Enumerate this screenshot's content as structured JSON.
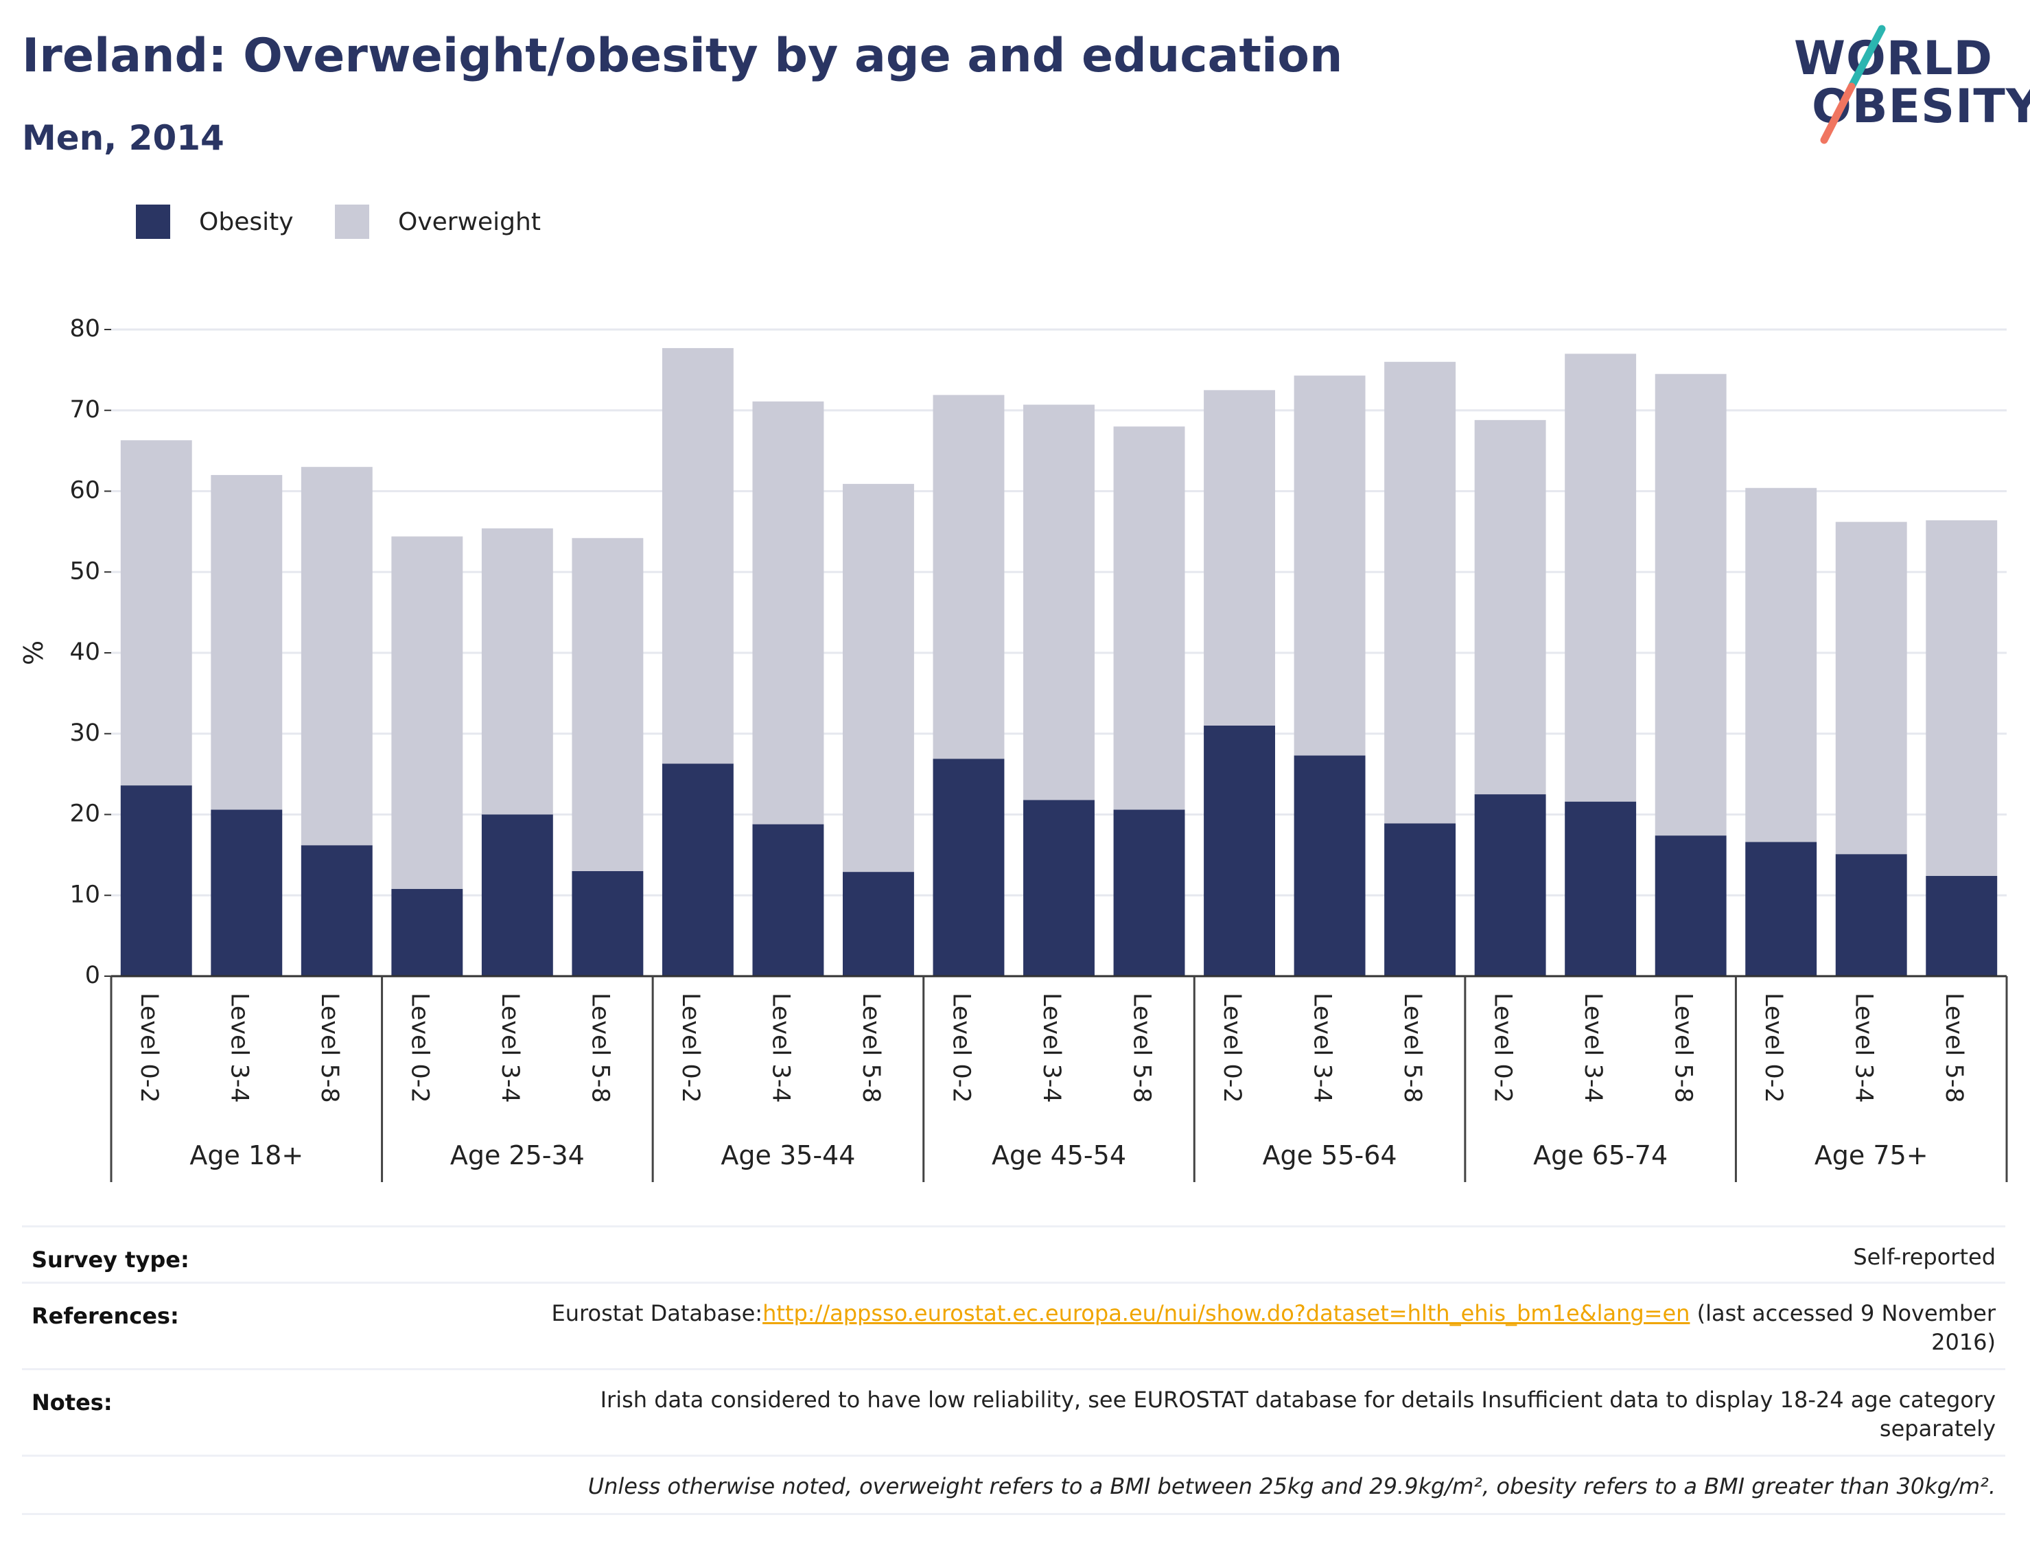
{
  "header": {
    "title": "Ireland: Overweight/obesity by age and education",
    "subtitle": "Men, 2014"
  },
  "logo": {
    "line1": "WORLD",
    "line2": "OBESITY",
    "accent_colors": [
      "#2bb5b0",
      "#f07560"
    ]
  },
  "legend": {
    "items": [
      {
        "label": "Obesity",
        "color": "#2a3563"
      },
      {
        "label": "Overweight",
        "color": "#cacbd7"
      }
    ]
  },
  "chart_data": {
    "type": "bar",
    "stacked": true,
    "ylabel": "%",
    "ylim": [
      0,
      80
    ],
    "yticks": [
      0,
      10,
      20,
      30,
      40,
      50,
      60,
      70,
      80
    ],
    "grid": true,
    "legend_position": "top-left",
    "groups": [
      "Age 18+",
      "Age 25-34",
      "Age 35-44",
      "Age 45-54",
      "Age 55-64",
      "Age 65-74",
      "Age 75+"
    ],
    "subcategories": [
      "Level 0-2",
      "Level 3-4",
      "Level 5-8"
    ],
    "series": [
      {
        "name": "Obesity",
        "color": "#2a3563",
        "values": [
          23.6,
          20.6,
          16.2,
          10.8,
          20.0,
          13.0,
          26.3,
          18.8,
          12.9,
          26.9,
          21.8,
          20.6,
          31.0,
          27.3,
          18.9,
          22.5,
          21.6,
          17.4,
          16.6,
          15.1,
          12.4
        ]
      },
      {
        "name": "Overweight",
        "color": "#cacbd7",
        "values": [
          42.7,
          41.4,
          46.8,
          43.6,
          35.4,
          41.2,
          51.4,
          52.3,
          48.0,
          45.0,
          48.9,
          47.4,
          41.5,
          47.0,
          57.1,
          46.3,
          55.4,
          57.1,
          43.8,
          41.1,
          44.0
        ]
      }
    ]
  },
  "footer": {
    "survey_type_label": "Survey type:",
    "survey_type_value": "Self-reported",
    "references_label": "References:",
    "references_prefix": "Eurostat Database:",
    "references_link": "http://appsso.eurostat.ec.europa.eu/nui/show.do?dataset=hlth_ehis_bm1e&lang=en",
    "references_suffix_1": " (last accessed 9 November",
    "references_suffix_2": "2016)",
    "notes_label": "Notes:",
    "notes_line_1": "Irish data considered to have low reliability, see EUROSTAT database for details Insufficient data to display 18-24 age category",
    "notes_line_2": "separately",
    "definition_note": "Unless otherwise noted, overweight refers to a BMI between 25kg and 29.9kg/m², obesity refers to a BMI greater than 30kg/m²."
  }
}
